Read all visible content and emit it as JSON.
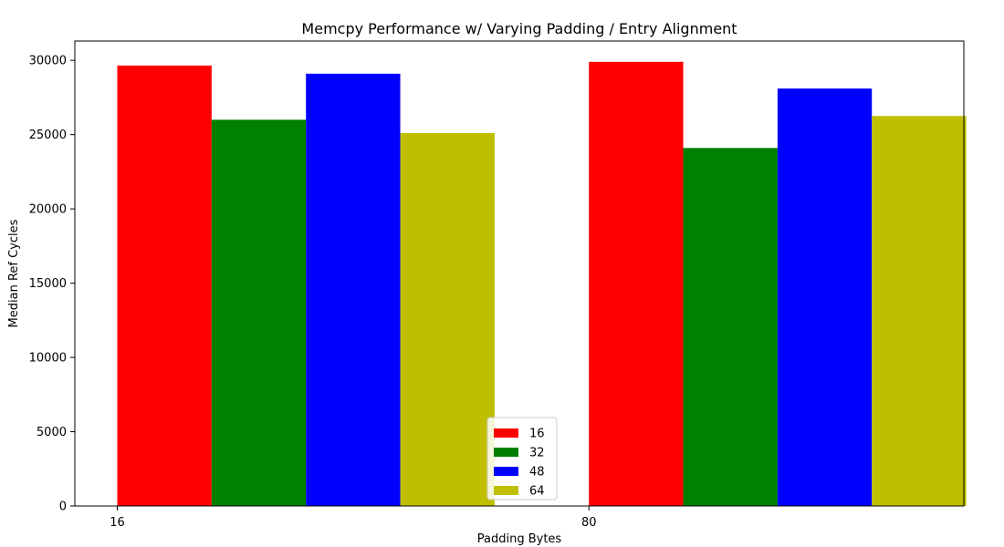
{
  "chart_data": {
    "type": "bar",
    "title": "Memcpy Performance w/ Varying Padding / Entry Alignment",
    "xlabel": "Padding Bytes",
    "ylabel": "Median Ref Cycles",
    "categories": [
      "16",
      "80"
    ],
    "ylim": [
      0,
      31300
    ],
    "yticks": [
      0,
      5000,
      10000,
      15000,
      20000,
      25000,
      30000
    ],
    "grid": false,
    "legend_position": "lower-center",
    "series": [
      {
        "name": "16",
        "color": "#ff0000",
        "values": [
          29650,
          29900
        ]
      },
      {
        "name": "32",
        "color": "#008000",
        "values": [
          26000,
          24100
        ]
      },
      {
        "name": "48",
        "color": "#0000ff",
        "values": [
          29100,
          28100
        ]
      },
      {
        "name": "64",
        "color": "#bfbf00",
        "values": [
          25100,
          26250
        ]
      }
    ]
  }
}
